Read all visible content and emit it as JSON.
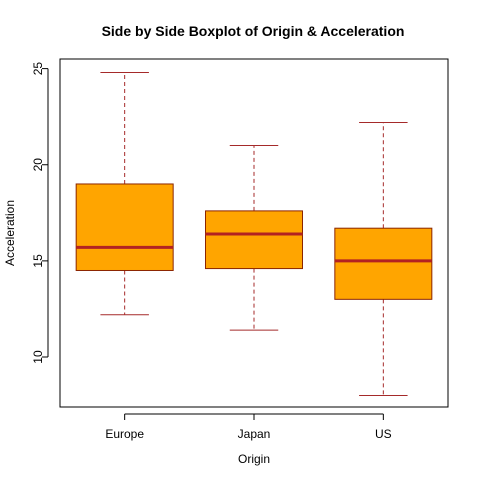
{
  "chart_data": {
    "type": "boxplot",
    "title": "Side by Side Boxplot of Origin & Acceleration",
    "xlabel": "Origin",
    "ylabel": "Acceleration",
    "categories": [
      "Europe",
      "Japan",
      "US"
    ],
    "ylim": [
      7.4,
      25.5
    ],
    "yticks": [
      10,
      15,
      20,
      25
    ],
    "grid": false,
    "boxes": [
      {
        "category": "Europe",
        "min": 12.2,
        "q1": 14.5,
        "median": 15.7,
        "q3": 19.0,
        "max": 24.8
      },
      {
        "category": "Japan",
        "min": 11.4,
        "q1": 14.6,
        "median": 16.4,
        "q3": 17.6,
        "max": 21.0
      },
      {
        "category": "US",
        "min": 8.0,
        "q1": 13.0,
        "median": 15.0,
        "q3": 16.7,
        "max": 22.2
      }
    ],
    "colors": {
      "box_fill": "#FFA500",
      "box_border": "#8B2500",
      "median": "#B22222",
      "whisker": "#A52A2A"
    }
  }
}
